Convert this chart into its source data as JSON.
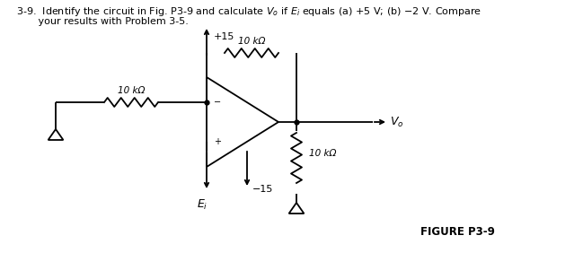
{
  "title_line1": "3-9.  Identify the circuit in Fig. P3-9 and calculate $V_o$ if $E_i$ equals (a) +5 V; (b) −2 V. Compare",
  "title_line2": "       your results with Problem 3-5.",
  "figure_label": "FIGURE P3-9",
  "res_label_feedback": "10 kΩ",
  "res_label_input": "10 kΩ",
  "res_label_load": "10 kΩ",
  "supply_pos": "+15",
  "supply_neg": "−15",
  "input_label": "$E_i$",
  "output_label": "$V_o$",
  "bg_color": "#ffffff",
  "line_color": "#000000"
}
